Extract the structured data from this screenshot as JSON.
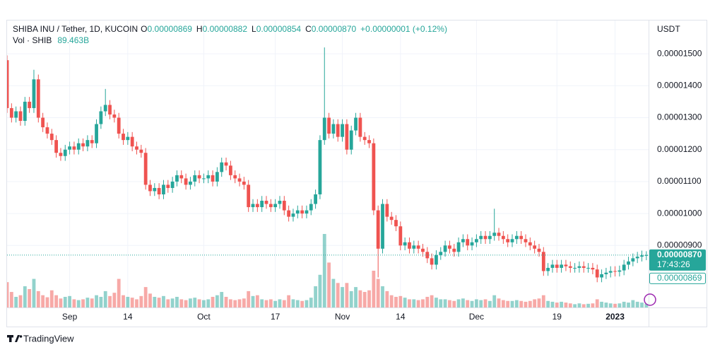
{
  "chart_data": {
    "type": "candlestick",
    "legend": {
      "symbol": "SHIBA INU / Tether, 1D, KUCOIN",
      "fields": [
        {
          "key": "O",
          "value": "0.00000869"
        },
        {
          "key": "H",
          "value": "0.00000882"
        },
        {
          "key": "L",
          "value": "0.00000854"
        },
        {
          "key": "C",
          "value": "0.00000870"
        }
      ],
      "change": "+0.00000001 (+0.12%)",
      "volume_name": "Vol · SHIB",
      "volume": "89.463B"
    },
    "y_unit": "USDT",
    "countdown": "17:43:26",
    "up_color": "#26a69a",
    "down_color": "#ef5350",
    "grid": true,
    "open": [
      1.48e-05,
      1.33e-05,
      1.3e-05,
      1.32e-05,
      1.29e-05,
      1.35e-05,
      1.33e-05,
      1.42e-05,
      1.3e-05,
      1.27e-05,
      1.25e-05,
      1.23e-05,
      1.19e-05,
      1.18e-05,
      1.2e-05,
      1.21e-05,
      1.2e-05,
      1.22e-05,
      1.21e-05,
      1.23e-05,
      1.22e-05,
      1.28e-05,
      1.32e-05,
      1.34e-05,
      1.31e-05,
      1.3e-05,
      1.25e-05,
      1.23e-05,
      1.24e-05,
      1.21e-05,
      1.2e-05,
      1.19e-05,
      1.09e-05,
      1.07e-05,
      1.08e-05,
      1.06e-05,
      1.09e-05,
      1.08e-05,
      1.1e-05,
      1.12e-05,
      1.11e-05,
      1.09e-05,
      1.1e-05,
      1.12e-05,
      1.11e-05,
      1.11e-05,
      1.12e-05,
      1.1e-05,
      1.13e-05,
      1.16e-05,
      1.15e-05,
      1.12e-05,
      1.11e-05,
      1.1e-05,
      1.09e-05,
      1.02e-05,
      1.03e-05,
      1.02e-05,
      1.04e-05,
      1.03e-05,
      1.02e-05,
      1.03e-05,
      1.04e-05,
      1.01e-05,
      9.9e-06,
      1e-05,
      1.01e-05,
      1e-05,
      1.01e-05,
      1.03e-05,
      1.06e-05,
      1.23e-05,
      1.3e-05,
      1.25e-05,
      1.28e-05,
      1.24e-05,
      1.28e-05,
      1.2e-05,
      1.26e-05,
      1.3e-05,
      1.24e-05,
      1.23e-05,
      1.22e-05,
      1.01e-05,
      8.9e-06,
      1.03e-05,
      9.9e-06,
      9.8e-06,
      9.6e-06,
      9e-06,
      9.1e-06,
      8.9e-06,
      9e-06,
      8.9e-06,
      8.8e-06,
      8.6e-06,
      8.4e-06,
      8.7e-06,
      8.8e-06,
      9e-06,
      8.9e-06,
      8.8e-06,
      9.1e-06,
      9.2e-06,
      9e-06,
      9.1e-06,
      9.2e-06,
      9.3e-06,
      9.2e-06,
      9.3e-06,
      9.4e-06,
      9.3e-06,
      9.2e-06,
      9.1e-06,
      9.2e-06,
      9.3e-06,
      9.2e-06,
      9.1e-06,
      9e-06,
      8.9e-06,
      8.8e-06,
      8.2e-06,
      8.3e-06,
      8.4e-06,
      8.3e-06,
      8.4e-06,
      8.35e-06,
      8.3e-06,
      8.3e-06,
      8.35e-06,
      8.3e-06,
      8.3e-06,
      8.25e-06,
      8e-06,
      8.1e-06,
      8.15e-06,
      8.2e-06,
      8.18e-06,
      8.22e-06,
      8.4e-06,
      8.5e-06,
      8.6e-06,
      8.65e-06,
      8.69e-06
    ],
    "high": [
      1.495e-05,
      1.345e-05,
      1.335e-05,
      1.335e-05,
      1.365e-05,
      1.365e-05,
      1.45e-05,
      1.435e-05,
      1.315e-05,
      1.285e-05,
      1.265e-05,
      1.245e-05,
      1.205e-05,
      1.215e-05,
      1.225e-05,
      1.225e-05,
      1.235e-05,
      1.235e-05,
      1.245e-05,
      1.245e-05,
      1.295e-05,
      1.335e-05,
      1.39e-05,
      1.355e-05,
      1.325e-05,
      1.315e-05,
      1.265e-05,
      1.255e-05,
      1.255e-05,
      1.225e-05,
      1.215e-05,
      1.205e-05,
      1.105e-05,
      1.095e-05,
      1.095e-05,
      1.105e-05,
      1.105e-05,
      1.115e-05,
      1.135e-05,
      1.135e-05,
      1.125e-05,
      1.115e-05,
      1.135e-05,
      1.135e-05,
      1.125e-05,
      1.135e-05,
      1.135e-05,
      1.145e-05,
      1.175e-05,
      1.175e-05,
      1.165e-05,
      1.135e-05,
      1.125e-05,
      1.115e-05,
      1.105e-05,
      1.045e-05,
      1.045e-05,
      1.055e-05,
      1.055e-05,
      1.045e-05,
      1.045e-05,
      1.055e-05,
      1.055e-05,
      1.025e-05,
      1.015e-05,
      1.025e-05,
      1.025e-05,
      1.025e-05,
      1.045e-05,
      1.075e-05,
      1.245e-05,
      1.52e-05,
      1.315e-05,
      1.295e-05,
      1.295e-05,
      1.295e-05,
      1.295e-05,
      1.275e-05,
      1.315e-05,
      1.315e-05,
      1.255e-05,
      1.245e-05,
      1.235e-05,
      1.025e-05,
      1.045e-05,
      1.045e-05,
      1.005e-05,
      9.95e-06,
      9.75e-06,
      9.25e-06,
      9.25e-06,
      9.15e-06,
      9.15e-06,
      9.05e-06,
      8.95e-06,
      8.75e-06,
      8.85e-06,
      8.95e-06,
      9.15e-06,
      9.15e-06,
      9.05e-06,
      9.25e-06,
      9.35e-06,
      9.35e-06,
      9.25e-06,
      9.35e-06,
      9.45e-06,
      9.45e-06,
      9.45e-06,
      1.015e-05,
      9.55e-06,
      9.45e-06,
      9.35e-06,
      9.35e-06,
      9.45e-06,
      9.45e-06,
      9.35e-06,
      9.25e-06,
      9.15e-06,
      9.05e-06,
      8.95e-06,
      8.45e-06,
      8.55e-06,
      8.55e-06,
      8.55e-06,
      8.55e-06,
      8.5e-06,
      8.45e-06,
      8.5e-06,
      8.5e-06,
      8.45e-06,
      8.45e-06,
      8.4e-06,
      8.25e-06,
      8.3e-06,
      8.35e-06,
      8.35e-06,
      8.37e-06,
      8.55e-06,
      8.65e-06,
      8.75e-06,
      8.8e-06,
      8.84e-06,
      8.82e-06
    ],
    "low": [
      1.315e-05,
      1.285e-05,
      1.285e-05,
      1.275e-05,
      1.275e-05,
      1.315e-05,
      1.315e-05,
      1.285e-05,
      1.255e-05,
      1.235e-05,
      1.215e-05,
      1.175e-05,
      1.165e-05,
      1.165e-05,
      1.185e-05,
      1.185e-05,
      1.185e-05,
      1.195e-05,
      1.195e-05,
      1.205e-05,
      1.205e-05,
      1.265e-05,
      1.305e-05,
      1.295e-05,
      1.285e-05,
      1.235e-05,
      1.215e-05,
      1.215e-05,
      1.195e-05,
      1.185e-05,
      1.175e-05,
      1.075e-05,
      1.055e-05,
      1.055e-05,
      1.045e-05,
      1.045e-05,
      1.065e-05,
      1.065e-05,
      1.085e-05,
      1.095e-05,
      1.075e-05,
      1.075e-05,
      1.085e-05,
      1.095e-05,
      1.095e-05,
      1.095e-05,
      1.085e-05,
      1.085e-05,
      1.115e-05,
      1.135e-05,
      1.105e-05,
      1.095e-05,
      1.085e-05,
      1.075e-05,
      1.005e-05,
      1.005e-05,
      1.005e-05,
      1.005e-05,
      1.015e-05,
      1.005e-05,
      1.005e-05,
      1.015e-05,
      9.95e-06,
      9.75e-06,
      9.75e-06,
      9.85e-06,
      9.85e-06,
      9.85e-06,
      9.95e-06,
      1.015e-05,
      1.045e-05,
      1.215e-05,
      1.235e-05,
      1.235e-05,
      1.225e-05,
      1.225e-05,
      1.185e-05,
      1.185e-05,
      1.245e-05,
      1.225e-05,
      1.215e-05,
      1.205e-05,
      9.95e-06,
      8e-06,
      8.75e-06,
      9.75e-06,
      9.65e-06,
      9.45e-06,
      8.85e-06,
      8.85e-06,
      8.75e-06,
      8.75e-06,
      8.75e-06,
      8.65e-06,
      8.45e-06,
      8.25e-06,
      8.25e-06,
      8.55e-06,
      8.65e-06,
      8.75e-06,
      8.65e-06,
      8.65e-06,
      8.95e-06,
      8.85e-06,
      8.85e-06,
      8.95e-06,
      9.05e-06,
      9.05e-06,
      9.05e-06,
      9.15e-06,
      9.15e-06,
      9.05e-06,
      8.95e-06,
      8.95e-06,
      9.05e-06,
      9.05e-06,
      8.95e-06,
      8.85e-06,
      8.75e-06,
      8.65e-06,
      8.05e-06,
      8.05e-06,
      8.15e-06,
      8.15e-06,
      8.15e-06,
      8.2e-06,
      8.15e-06,
      8.15e-06,
      8.15e-06,
      8.15e-06,
      8.15e-06,
      8.1e-06,
      7.85e-06,
      7.85e-06,
      7.95e-06,
      8e-06,
      8.03e-06,
      8.03e-06,
      8.07e-06,
      8.25e-06,
      8.35e-06,
      8.45e-06,
      8.5e-06,
      8.54e-06
    ],
    "close": [
      1.33e-05,
      1.3e-05,
      1.32e-05,
      1.29e-05,
      1.35e-05,
      1.33e-05,
      1.42e-05,
      1.3e-05,
      1.27e-05,
      1.25e-05,
      1.23e-05,
      1.19e-05,
      1.18e-05,
      1.2e-05,
      1.21e-05,
      1.2e-05,
      1.22e-05,
      1.21e-05,
      1.23e-05,
      1.22e-05,
      1.28e-05,
      1.32e-05,
      1.34e-05,
      1.31e-05,
      1.3e-05,
      1.25e-05,
      1.23e-05,
      1.24e-05,
      1.21e-05,
      1.2e-05,
      1.19e-05,
      1.09e-05,
      1.07e-05,
      1.08e-05,
      1.06e-05,
      1.09e-05,
      1.08e-05,
      1.1e-05,
      1.12e-05,
      1.11e-05,
      1.09e-05,
      1.1e-05,
      1.12e-05,
      1.11e-05,
      1.11e-05,
      1.12e-05,
      1.1e-05,
      1.13e-05,
      1.16e-05,
      1.15e-05,
      1.12e-05,
      1.11e-05,
      1.1e-05,
      1.09e-05,
      1.02e-05,
      1.03e-05,
      1.02e-05,
      1.04e-05,
      1.03e-05,
      1.02e-05,
      1.03e-05,
      1.04e-05,
      1.01e-05,
      9.9e-06,
      1e-05,
      1.01e-05,
      1e-05,
      1.01e-05,
      1.03e-05,
      1.06e-05,
      1.23e-05,
      1.3e-05,
      1.25e-05,
      1.28e-05,
      1.24e-05,
      1.28e-05,
      1.2e-05,
      1.26e-05,
      1.3e-05,
      1.24e-05,
      1.23e-05,
      1.22e-05,
      1.01e-05,
      8.9e-06,
      1.03e-05,
      9.9e-06,
      9.8e-06,
      9.6e-06,
      9e-06,
      9.1e-06,
      8.9e-06,
      9e-06,
      8.9e-06,
      8.8e-06,
      8.6e-06,
      8.4e-06,
      8.7e-06,
      8.8e-06,
      9e-06,
      8.9e-06,
      8.8e-06,
      9.1e-06,
      9.2e-06,
      9e-06,
      9.1e-06,
      9.2e-06,
      9.3e-06,
      9.2e-06,
      9.3e-06,
      9.4e-06,
      9.3e-06,
      9.2e-06,
      9.1e-06,
      9.2e-06,
      9.3e-06,
      9.2e-06,
      9.1e-06,
      9e-06,
      8.9e-06,
      8.8e-06,
      8.2e-06,
      8.3e-06,
      8.4e-06,
      8.3e-06,
      8.4e-06,
      8.35e-06,
      8.3e-06,
      8.3e-06,
      8.35e-06,
      8.3e-06,
      8.3e-06,
      8.25e-06,
      8e-06,
      8.1e-06,
      8.15e-06,
      8.2e-06,
      8.18e-06,
      8.22e-06,
      8.4e-06,
      8.5e-06,
      8.6e-06,
      8.65e-06,
      8.69e-06,
      8.7e-06
    ],
    "volume": [
      620,
      380,
      260,
      300,
      520,
      450,
      700,
      400,
      300,
      250,
      420,
      300,
      220,
      260,
      280,
      200,
      180,
      200,
      240,
      220,
      300,
      260,
      400,
      280,
      360,
      700,
      300,
      260,
      240,
      200,
      280,
      500,
      340,
      260,
      240,
      280,
      200,
      220,
      260,
      200,
      180,
      220,
      240,
      200,
      180,
      200,
      260,
      300,
      380,
      260,
      200,
      180,
      200,
      220,
      400,
      280,
      300,
      200,
      180,
      200,
      160,
      200,
      180,
      300,
      200,
      180,
      160,
      180,
      240,
      520,
      800,
      1800,
      1100,
      700,
      600,
      500,
      600,
      400,
      500,
      420,
      380,
      420,
      900,
      700,
      520,
      400,
      300,
      260,
      280,
      240,
      200,
      200,
      180,
      200,
      260,
      300,
      240,
      200,
      200,
      180,
      160,
      200,
      220,
      180,
      160,
      200,
      180,
      200,
      160,
      300,
      220,
      180,
      160,
      160,
      180,
      160,
      140,
      160,
      200,
      220,
      300,
      160,
      140,
      120,
      140,
      120,
      100,
      80,
      100,
      80,
      90,
      100,
      200,
      140,
      120,
      100,
      90,
      100,
      140,
      120,
      180,
      140,
      120,
      89.463
    ],
    "xlim": [
      0,
      143.5
    ],
    "xticks": [
      {
        "value": 14,
        "label": "Sep"
      },
      {
        "value": 27,
        "label": "14"
      },
      {
        "value": 44,
        "label": "Oct"
      },
      {
        "value": 60,
        "label": "17"
      },
      {
        "value": 75,
        "label": "Nov"
      },
      {
        "value": 88,
        "label": "14"
      },
      {
        "value": 105,
        "label": "Dec"
      },
      {
        "value": 123,
        "label": "19"
      },
      {
        "value": 136,
        "label": "2023"
      }
    ],
    "ylim": [
      7.06e-06,
      1.602e-05
    ],
    "yticks": [
      {
        "value": 9e-06,
        "label": "0.00000900"
      },
      {
        "value": 1e-05,
        "label": "0.00001000"
      },
      {
        "value": 1.1e-05,
        "label": "0.00001100"
      },
      {
        "value": 1.2e-05,
        "label": "0.00001200"
      },
      {
        "value": 1.3e-05,
        "label": "0.00001300"
      },
      {
        "value": 1.4e-05,
        "label": "0.00001400"
      },
      {
        "value": 1.5e-05,
        "label": "0.00001500"
      }
    ]
  },
  "branding": "TradingView"
}
